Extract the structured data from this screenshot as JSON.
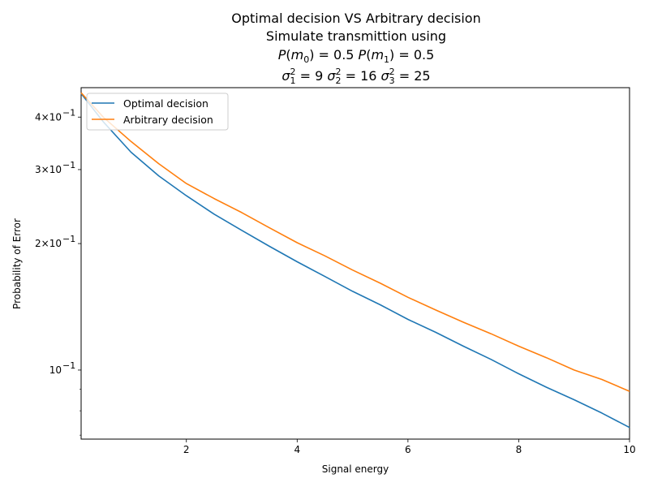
{
  "chart_data": {
    "type": "line",
    "title_lines": [
      "Optimal decision VS Arbitrary decision",
      "Simulate transmittion using"
    ],
    "prior_line": {
      "p0_label": "P",
      "p0_arg": "m",
      "p0_sub": "0",
      "p0_value": ") = 0.5 ",
      "p1_label": "P",
      "p1_arg": "m",
      "p1_sub": "1",
      "p1_value": ") = 0.5"
    },
    "variance_line": {
      "sym": "σ",
      "s1_sub": "1",
      "s1_sup": "2",
      "s1_value": " = 9 ",
      "s2_sub": "2",
      "s2_sup": "2",
      "s2_value": " = 16 ",
      "s3_sub": "3",
      "s3_sup": "2",
      "s3_value": " = 25"
    },
    "xlabel": "Signal energy",
    "ylabel": "Probability of Error",
    "xlim": [
      0.1,
      10
    ],
    "ylim": [
      0.0685,
      0.47
    ],
    "yscale": "log",
    "grid": false,
    "legend_position": "top-left",
    "x_ticks": [
      {
        "value": 2,
        "label": "2"
      },
      {
        "value": 4,
        "label": "4"
      },
      {
        "value": 6,
        "label": "6"
      },
      {
        "value": 8,
        "label": "8"
      },
      {
        "value": 10,
        "label": "10"
      }
    ],
    "y_ticks": [
      {
        "value": 0.4,
        "mant": "4×10",
        "exp": "−1"
      },
      {
        "value": 0.3,
        "mant": "3×10",
        "exp": "−1"
      },
      {
        "value": 0.2,
        "mant": "2×10",
        "exp": "−1"
      },
      {
        "value": 0.1,
        "mant": "10",
        "exp": "−1"
      }
    ],
    "y_minor_ticks": [
      0.09,
      0.08,
      0.07,
      0.6
    ],
    "x": [
      0.1,
      0.5,
      1,
      1.5,
      2,
      2.5,
      3,
      3.5,
      4,
      4.5,
      5,
      5.5,
      6,
      6.5,
      7,
      7.5,
      8,
      8.5,
      9,
      9.5,
      10
    ],
    "series": [
      {
        "name": "Optimal decision",
        "color": "#1f77b4",
        "values": [
          0.455,
          0.39,
          0.33,
          0.29,
          0.26,
          0.235,
          0.215,
          0.197,
          0.181,
          0.167,
          0.154,
          0.143,
          0.132,
          0.123,
          0.114,
          0.106,
          0.098,
          0.091,
          0.085,
          0.079,
          0.073
        ]
      },
      {
        "name": "Arbitrary decision",
        "color": "#ff7f0e",
        "values": [
          0.457,
          0.4,
          0.35,
          0.31,
          0.278,
          0.256,
          0.237,
          0.218,
          0.201,
          0.187,
          0.173,
          0.161,
          0.149,
          0.139,
          0.13,
          0.122,
          0.114,
          0.107,
          0.1,
          0.095,
          0.089
        ]
      }
    ]
  }
}
